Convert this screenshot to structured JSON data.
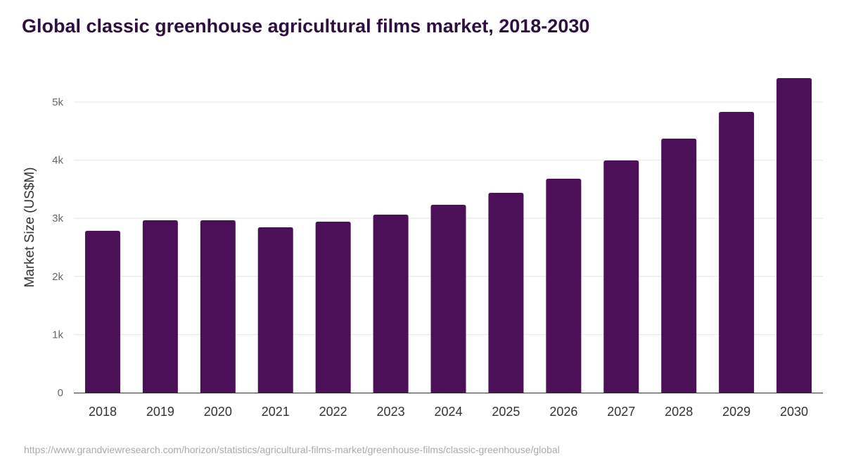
{
  "title": "Global classic greenhouse agricultural films market, 2018-2030",
  "source": "https://www.grandviewresearch.com/horizon/statistics/agricultural-films-market/greenhouse-films/classic-greenhouse/global",
  "chart_data": {
    "type": "bar",
    "title": "Global classic greenhouse agricultural films market, 2018-2030",
    "xlabel": "",
    "ylabel": "Market Size (US$M)",
    "categories": [
      "2018",
      "2019",
      "2020",
      "2021",
      "2022",
      "2023",
      "2024",
      "2025",
      "2026",
      "2027",
      "2028",
      "2029",
      "2030"
    ],
    "values": [
      2785,
      2966,
      2966,
      2845,
      2942,
      3063,
      3232,
      3438,
      3680,
      3995,
      4370,
      4831,
      5412
    ],
    "ylim": [
      0,
      5500
    ],
    "yticks": [
      0,
      1000,
      2000,
      3000,
      4000,
      5000
    ],
    "ytick_labels": [
      "0",
      "1k",
      "2k",
      "3k",
      "4k",
      "5k"
    ],
    "grid": true,
    "bar_color": "#4b1057"
  }
}
